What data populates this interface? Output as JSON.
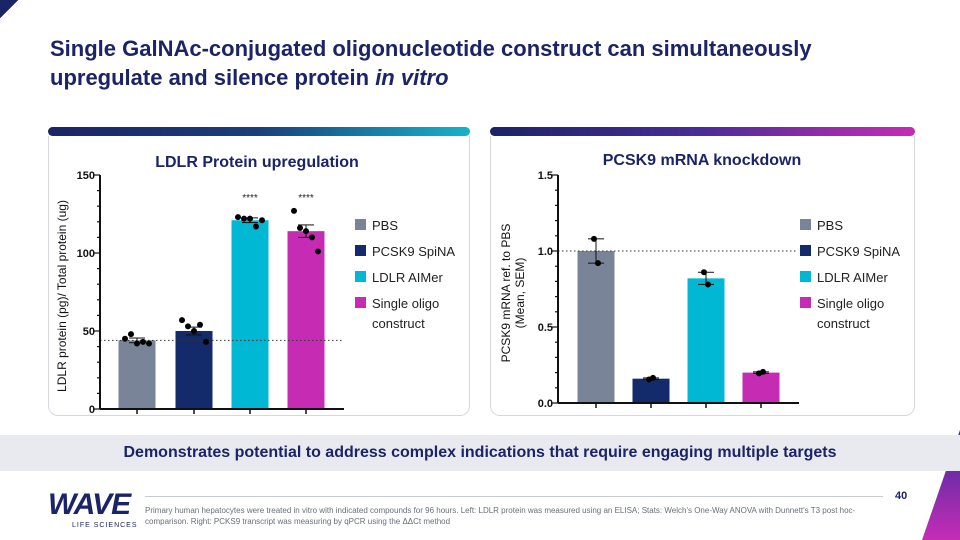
{
  "title": {
    "line1": "Single GalNAc-conjugated oligonucleotide construct can simultaneously",
    "line2_plain": "upregulate and silence protein ",
    "line2_italic": "in vitro"
  },
  "colors": {
    "PBS": "#7a8499",
    "PCSK9 SpiNA": "#132a6b",
    "LDLR AIMer": "#00b8d4",
    "Single oligo construct": "#c52bb3"
  },
  "chart_data": [
    {
      "type": "bar",
      "title": "LDLR Protein upregulation",
      "ylabel": "LDLR protein (pg)/ Total protein (ug)",
      "ylim": [
        0,
        150
      ],
      "yticks": [
        "0",
        "50",
        "100",
        "150"
      ],
      "ytick_values": [
        0,
        50,
        100,
        150
      ],
      "categories": [
        "PBS",
        "PCSK9 SpiNA",
        "LDLR AIMer",
        "Single oligo construct"
      ],
      "values": [
        44,
        50,
        121,
        114
      ],
      "errors": [
        1.5,
        2.5,
        1.5,
        4
      ],
      "points": [
        [
          45,
          48,
          42,
          43,
          42
        ],
        [
          57,
          53,
          50,
          54,
          43
        ],
        [
          123,
          122,
          122,
          117,
          121
        ],
        [
          127,
          116,
          114,
          110,
          101
        ]
      ],
      "annotations": [
        "",
        "",
        "****",
        "****"
      ],
      "reference_line": 44,
      "legend": [
        "PBS",
        "PCSK9 SpiNA",
        "LDLR AIMer",
        "Single oligo",
        "construct"
      ],
      "legend_position": "right"
    },
    {
      "type": "bar",
      "title": "PCSK9 mRNA knockdown",
      "ylabel": "PCSK9 mRNA ref. to PBS",
      "ylabel2": "(Mean, SEM)",
      "ylim": [
        0,
        1.5
      ],
      "yticks": [
        "0.0",
        "0.5",
        "1.0",
        "1.5"
      ],
      "ytick_values": [
        0,
        0.5,
        1.0,
        1.5
      ],
      "categories": [
        "PBS",
        "PCSK9 SpiNA",
        "LDLR AIMer",
        "Single oligo construct"
      ],
      "values": [
        1.0,
        0.16,
        0.82,
        0.2
      ],
      "errors": [
        0.08,
        0.005,
        0.04,
        0.005
      ],
      "points": [
        [
          1.08,
          0.92
        ],
        [
          0.155,
          0.165
        ],
        [
          0.86,
          0.78
        ],
        [
          0.195,
          0.205
        ]
      ],
      "annotations": [
        "",
        "",
        "",
        ""
      ],
      "reference_line": 1.0,
      "legend": [
        "PBS",
        "PCSK9 SpiNA",
        "LDLR AIMer",
        "Single oligo",
        "construct"
      ],
      "legend_position": "right"
    }
  ],
  "banner": "Demonstrates potential to address complex indications that require engaging multiple targets",
  "logo": {
    "wave": "WAVE",
    "sub": "LIFE SCIENCES"
  },
  "page_number": "40",
  "footnote": "Primary human hepatocytes were treated in vitro with indicated compounds for 96 hours. Left: LDLR protein was measured using an ELISA; Stats: Welch's One-Way ANOVA with Dunnett's T3 post hoc-comparison. Right: PCKS9 transcript was measuring by qPCR using the ΔΔCt method"
}
